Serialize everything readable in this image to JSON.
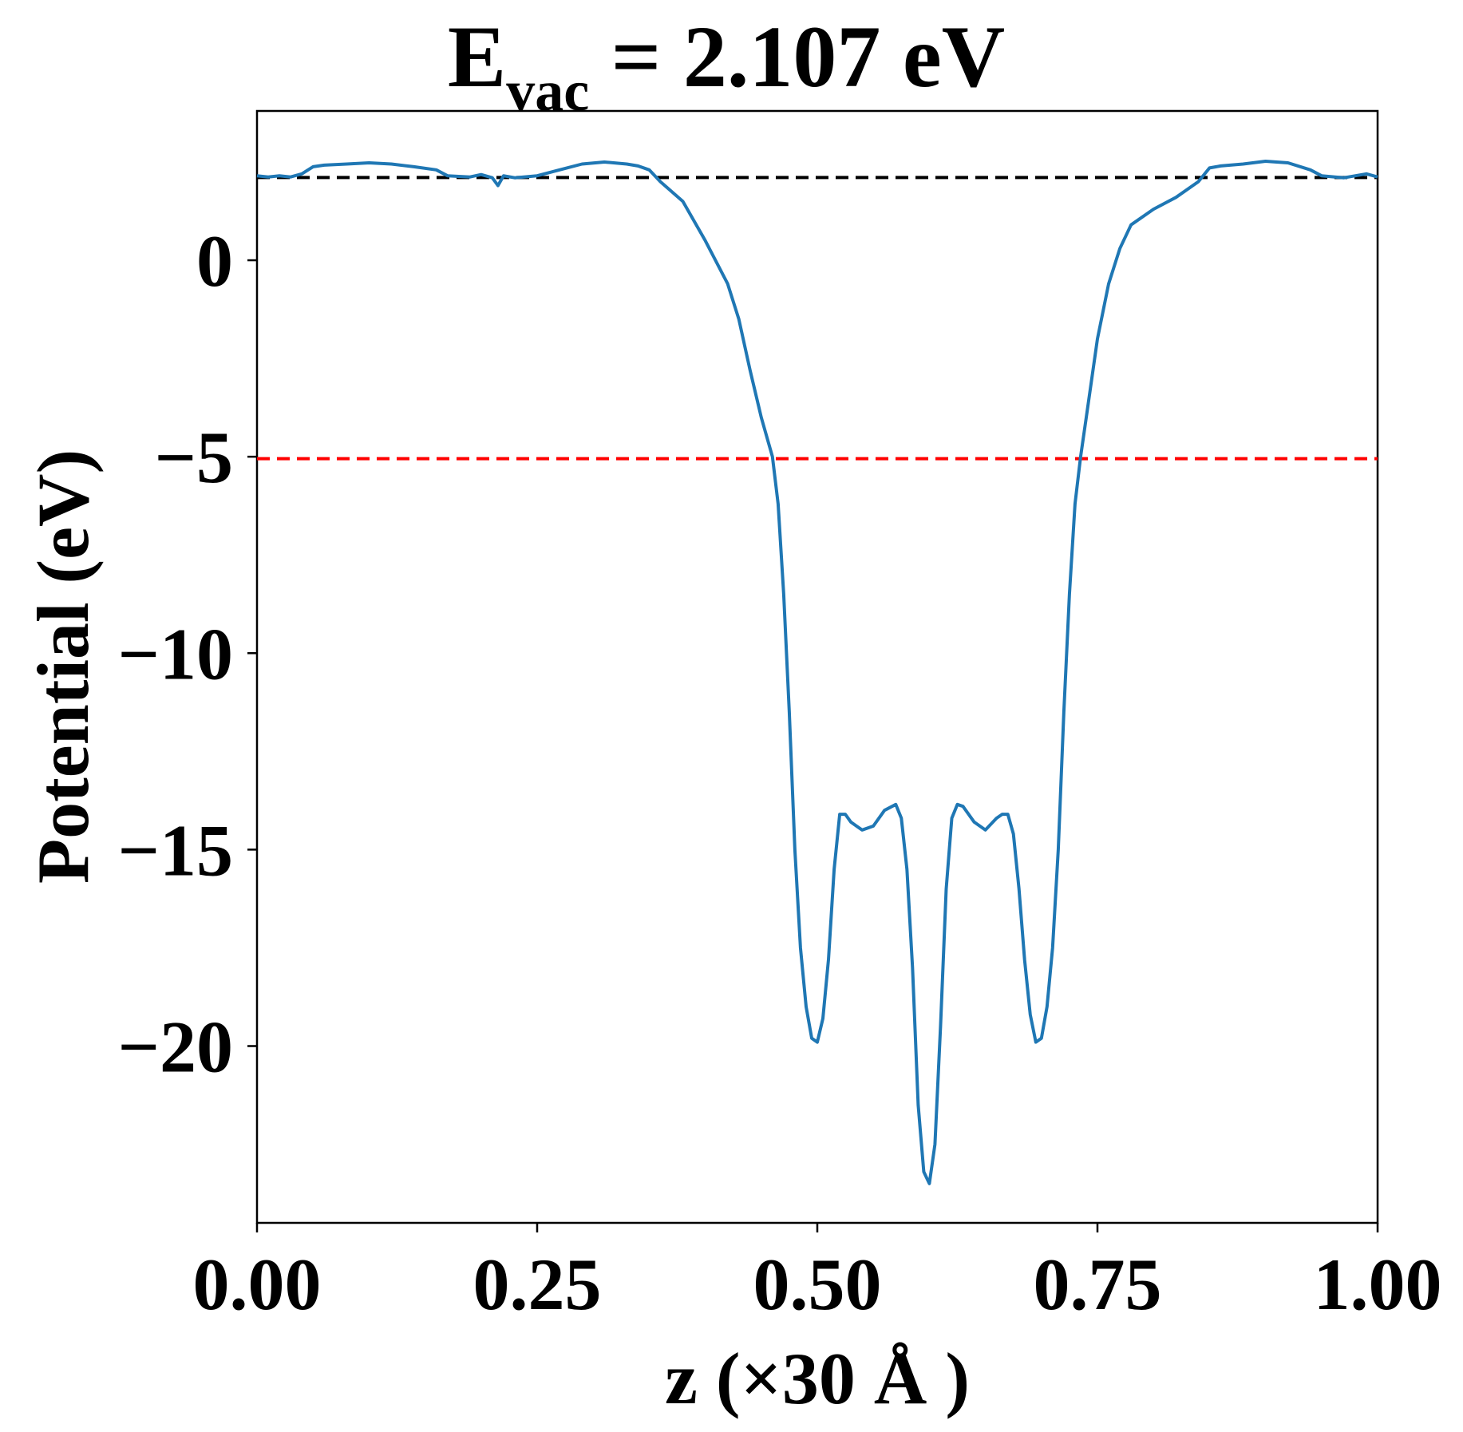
{
  "chart_data": {
    "type": "line",
    "title": {
      "main": "E",
      "subscript": "vac",
      "rest": " = 2.107 eV"
    },
    "xlabel": "z (×30 Å )",
    "ylabel": "Potential (eV)",
    "xlim": [
      0,
      1
    ],
    "ylim": [
      -24.5,
      3.8
    ],
    "xticks": [
      0,
      0.25,
      0.5,
      0.75,
      1.0
    ],
    "xtick_labels": [
      "0.00",
      "0.25",
      "0.50",
      "0.75",
      "1.00"
    ],
    "yticks": [
      0,
      -5,
      -10,
      -15,
      -20
    ],
    "ytick_labels": [
      "0",
      "−5",
      "−10",
      "−15",
      "−20"
    ],
    "grid": false,
    "colors": {
      "line": "#1f77b4",
      "vacuum_level": "#000000",
      "fermi_level": "#ff0000"
    },
    "reference_lines": [
      {
        "label": "vacuum-level",
        "y": 2.107,
        "style": "dashed",
        "color": "#000000"
      },
      {
        "label": "fermi-level",
        "y": -5.05,
        "style": "dashed",
        "color": "#ff0000"
      }
    ],
    "series": [
      {
        "x": [
          0.0,
          0.01,
          0.02,
          0.03,
          0.04,
          0.05,
          0.06,
          0.08,
          0.1,
          0.12,
          0.14,
          0.16,
          0.17,
          0.19,
          0.2,
          0.21,
          0.215,
          0.22,
          0.23,
          0.25,
          0.27,
          0.29,
          0.31,
          0.33,
          0.34,
          0.35,
          0.36,
          0.38,
          0.4,
          0.42,
          0.43,
          0.44,
          0.45,
          0.46,
          0.465,
          0.47,
          0.475,
          0.48,
          0.485,
          0.49,
          0.495,
          0.5,
          0.505,
          0.51,
          0.515,
          0.52,
          0.525,
          0.53,
          0.535,
          0.54,
          0.55,
          0.56,
          0.57,
          0.575,
          0.58,
          0.585,
          0.59,
          0.595,
          0.6,
          0.605,
          0.61,
          0.615,
          0.62,
          0.625,
          0.63,
          0.64,
          0.65,
          0.66,
          0.665,
          0.67,
          0.675,
          0.68,
          0.685,
          0.69,
          0.695,
          0.7,
          0.705,
          0.71,
          0.715,
          0.72,
          0.725,
          0.73,
          0.735,
          0.74,
          0.75,
          0.76,
          0.77,
          0.78,
          0.8,
          0.82,
          0.84,
          0.85,
          0.86,
          0.88,
          0.9,
          0.92,
          0.94,
          0.95,
          0.97,
          0.99,
          1.0
        ],
        "y": [
          2.15,
          2.12,
          2.15,
          2.12,
          2.2,
          2.38,
          2.42,
          2.45,
          2.48,
          2.45,
          2.38,
          2.3,
          2.15,
          2.12,
          2.18,
          2.1,
          1.9,
          2.15,
          2.1,
          2.15,
          2.3,
          2.45,
          2.5,
          2.45,
          2.4,
          2.3,
          2.0,
          1.5,
          0.5,
          -0.6,
          -1.5,
          -2.8,
          -4.0,
          -5.0,
          -6.2,
          -8.5,
          -11.5,
          -15.0,
          -17.5,
          -19.0,
          -19.8,
          -19.9,
          -19.3,
          -17.8,
          -15.5,
          -14.1,
          -14.1,
          -14.3,
          -14.4,
          -14.5,
          -14.4,
          -14.0,
          -13.85,
          -14.2,
          -15.5,
          -18.0,
          -21.5,
          -23.2,
          -23.5,
          -22.5,
          -19.5,
          -16.0,
          -14.2,
          -13.85,
          -13.9,
          -14.3,
          -14.5,
          -14.2,
          -14.1,
          -14.1,
          -14.6,
          -16.0,
          -17.8,
          -19.2,
          -19.9,
          -19.8,
          -19.0,
          -17.5,
          -15.0,
          -11.5,
          -8.5,
          -6.2,
          -5.0,
          -4.0,
          -2.0,
          -0.6,
          0.3,
          0.9,
          1.3,
          1.6,
          2.0,
          2.35,
          2.4,
          2.45,
          2.52,
          2.48,
          2.3,
          2.15,
          2.1,
          2.2,
          2.12
        ]
      }
    ]
  }
}
